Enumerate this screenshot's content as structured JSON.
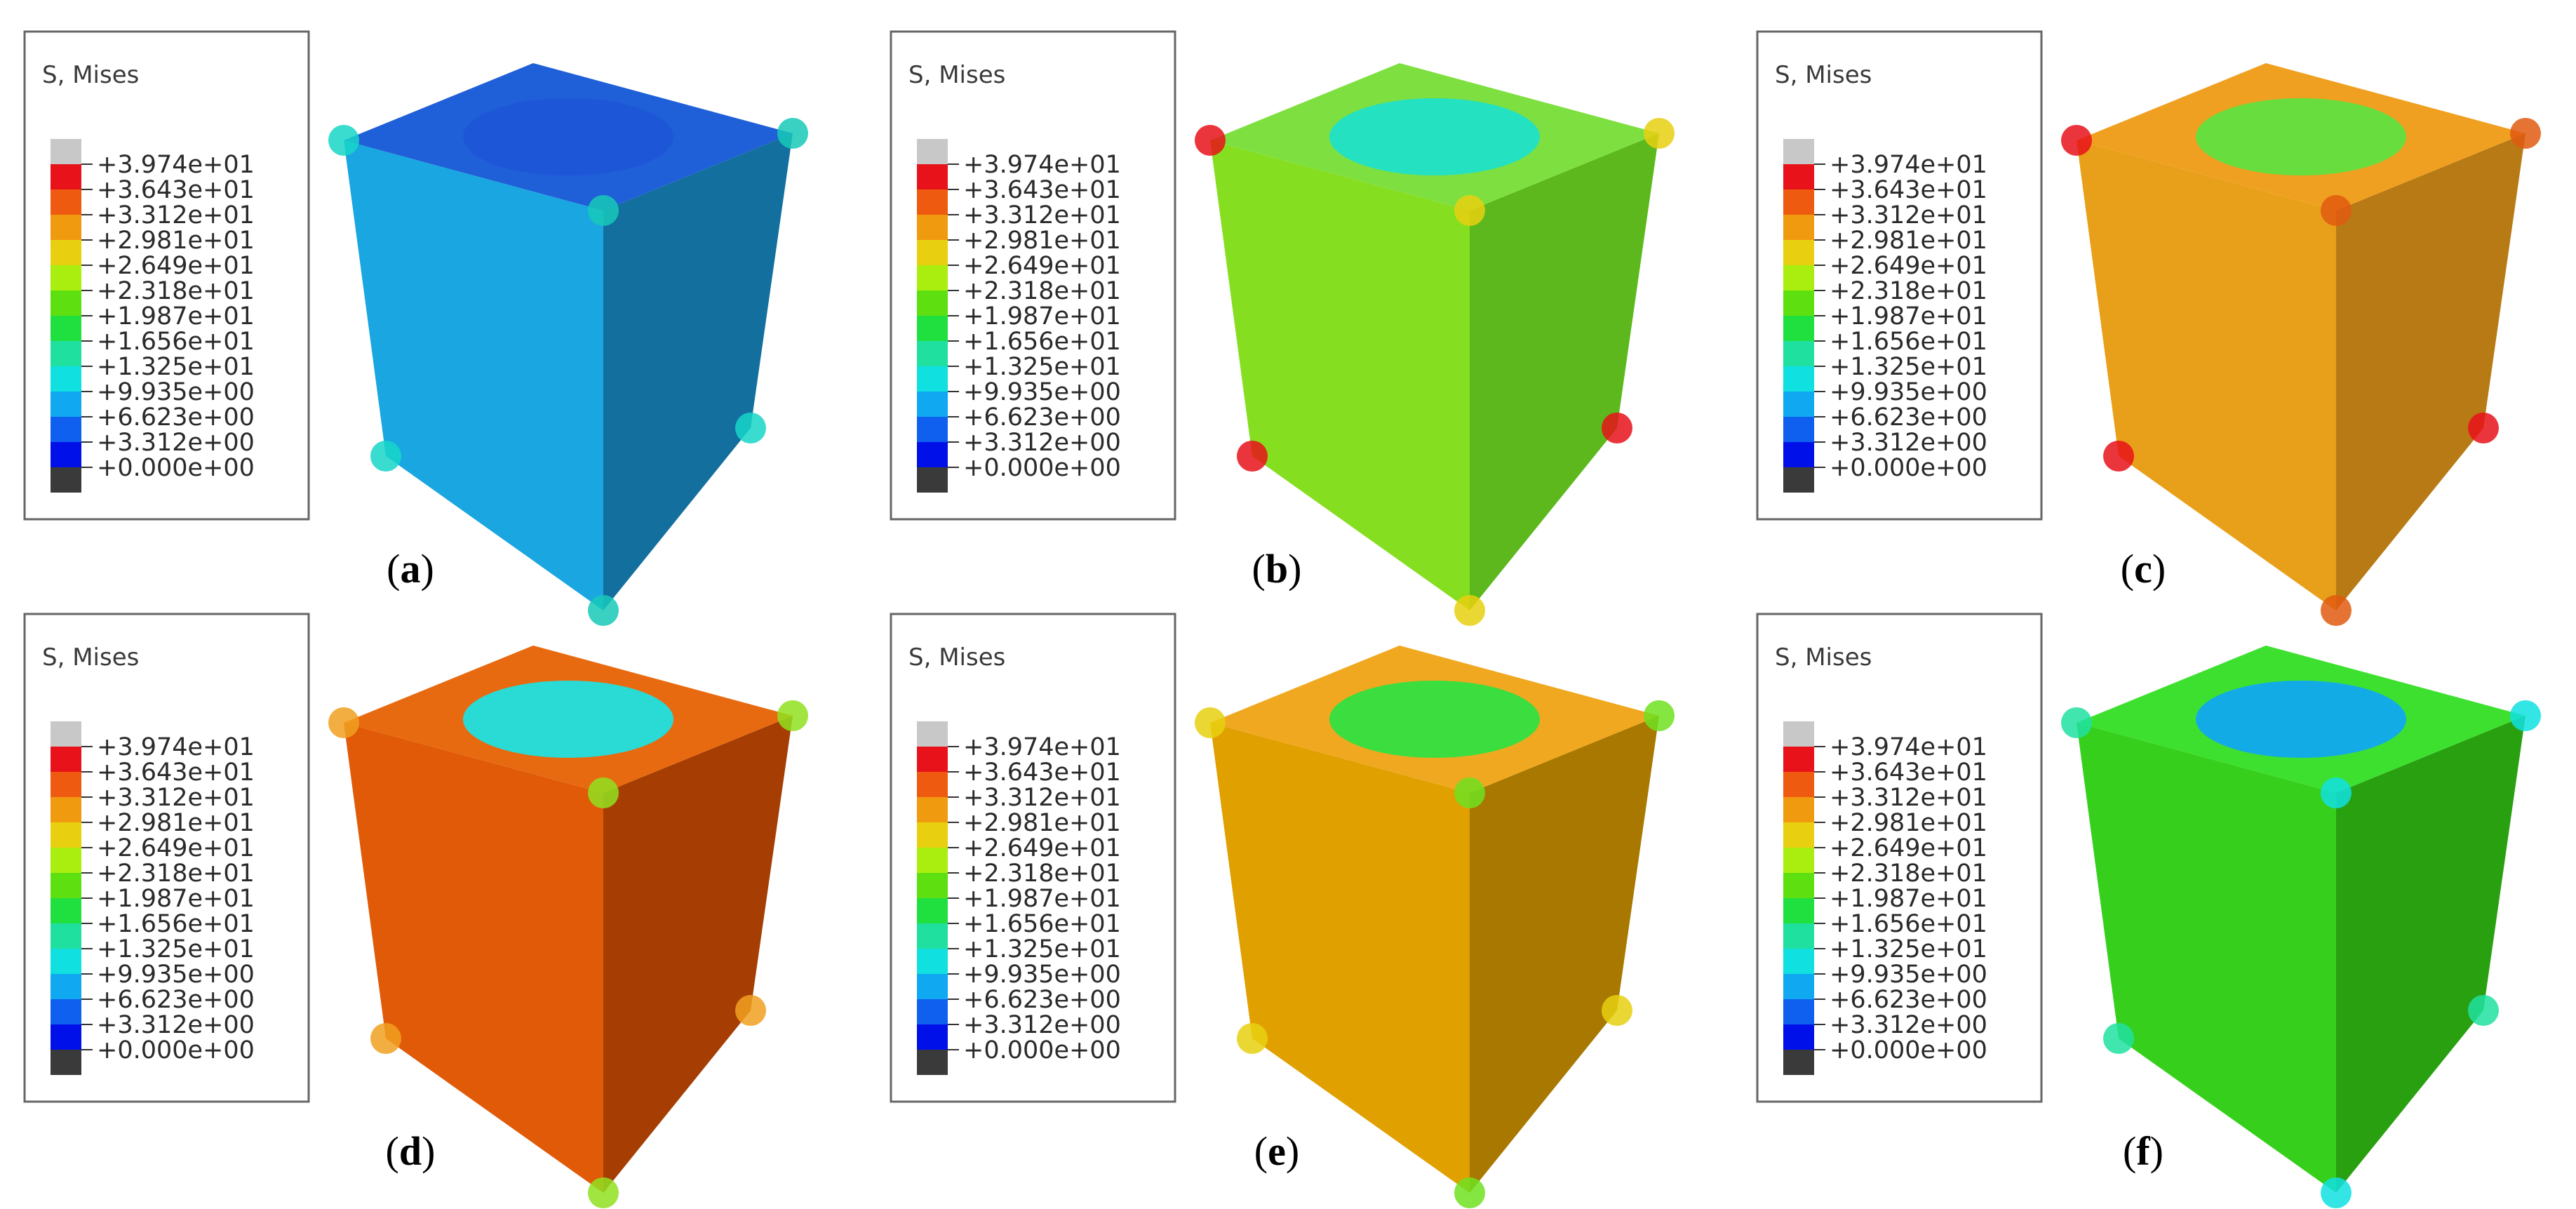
{
  "legend": {
    "title": "S, Mises",
    "labels": [
      "+3.974e+01",
      "+3.643e+01",
      "+3.312e+01",
      "+2.981e+01",
      "+2.649e+01",
      "+2.318e+01",
      "+1.987e+01",
      "+1.656e+01",
      "+1.325e+01",
      "+9.935e+00",
      "+6.623e+00",
      "+3.312e+00",
      "+0.000e+00"
    ],
    "colors": [
      "#c8c8c8",
      "#e8121a",
      "#ee5a10",
      "#f09a10",
      "#e8d010",
      "#aaee10",
      "#5ee010",
      "#20e040",
      "#20e0a0",
      "#10e0e0",
      "#10a8f0",
      "#1060f0",
      "#0010e8",
      "#3a3a3a"
    ]
  },
  "panels": [
    {
      "id": "a",
      "label": "a",
      "top": "#1f5fd8",
      "top_inner": "#1f55d8",
      "front": "#1aa6e0",
      "side": "#136f9e",
      "corner": "#17d6c8",
      "corner2": "#18c9b8"
    },
    {
      "id": "b",
      "label": "b",
      "top": "#7ee040",
      "top_inner": "#20e0c8",
      "front": "#86de20",
      "side": "#5cb81c",
      "corner": "#e8121a",
      "corner2": "#e8d010"
    },
    {
      "id": "c",
      "label": "c",
      "top": "#f0a020",
      "top_inner": "#60e040",
      "front": "#e8a01a",
      "side": "#b87a14",
      "corner": "#e8121a",
      "corner2": "#e05a10"
    },
    {
      "id": "d",
      "label": "d",
      "top": "#e86a10",
      "top_inner": "#20e0e0",
      "front": "#e05a08",
      "side": "#a63e04",
      "corner": "#f0a020",
      "corner2": "#90e020"
    },
    {
      "id": "e",
      "label": "e",
      "top": "#f0a820",
      "top_inner": "#30e040",
      "front": "#e0a000",
      "side": "#a87800",
      "corner": "#e8d010",
      "corner2": "#70e020"
    },
    {
      "id": "f",
      "label": "f",
      "top": "#3ee030",
      "top_inner": "#10a8f0",
      "front": "#36d01c",
      "side": "#28a010",
      "corner": "#20e0a0",
      "corner2": "#10e0e0"
    }
  ]
}
